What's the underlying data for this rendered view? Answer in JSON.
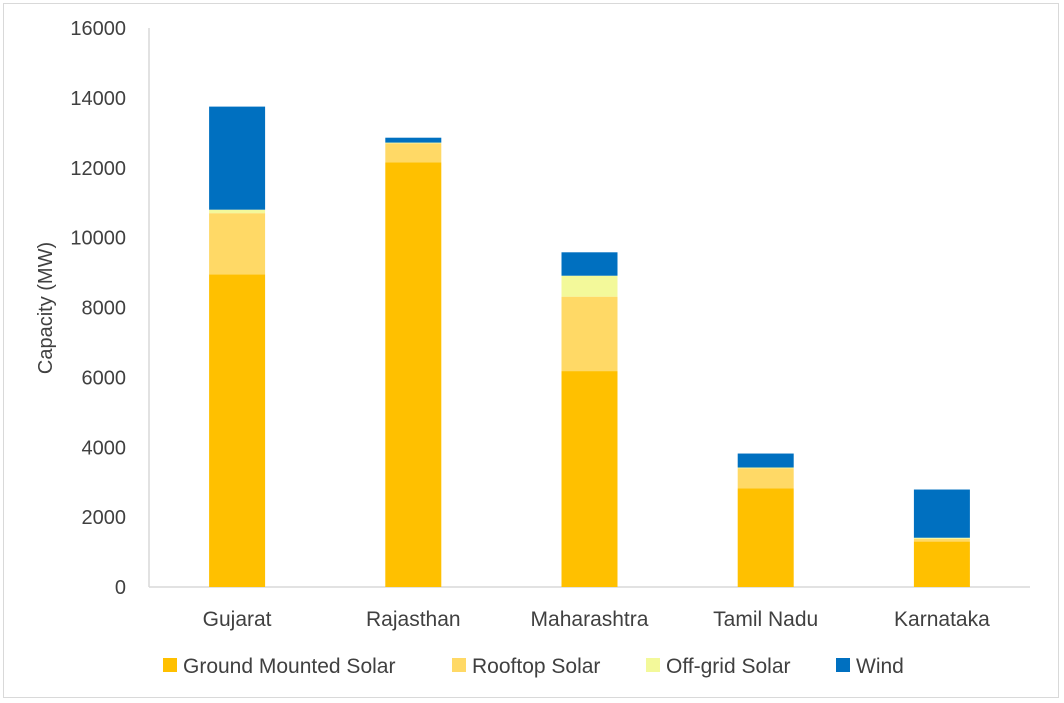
{
  "chart_data": {
    "type": "bar",
    "stacked": true,
    "title": "",
    "xlabel": "",
    "ylabel": "Capacity (MW)",
    "ylim": [
      0,
      16000
    ],
    "yticks": [
      0,
      2000,
      4000,
      6000,
      8000,
      10000,
      12000,
      14000,
      16000
    ],
    "grid": false,
    "legend_position": "bottom",
    "categories": [
      "Gujarat",
      "Rajasthan",
      "Maharashtra",
      "Tamil Nadu",
      "Karnataka"
    ],
    "series": [
      {
        "name": "Ground Mounted Solar",
        "color": "#FFC000",
        "values": [
          8950,
          12150,
          6180,
          2820,
          1300
        ]
      },
      {
        "name": "Rooftop Solar",
        "color": "#FFD966",
        "values": [
          1750,
          550,
          2130,
          580,
          80
        ]
      },
      {
        "name": "Off-grid Solar",
        "color": "#F3F99A",
        "values": [
          100,
          20,
          600,
          20,
          30
        ]
      },
      {
        "name": "Wind",
        "color": "#0070C0",
        "values": [
          2950,
          140,
          670,
          400,
          1380
        ]
      }
    ]
  }
}
